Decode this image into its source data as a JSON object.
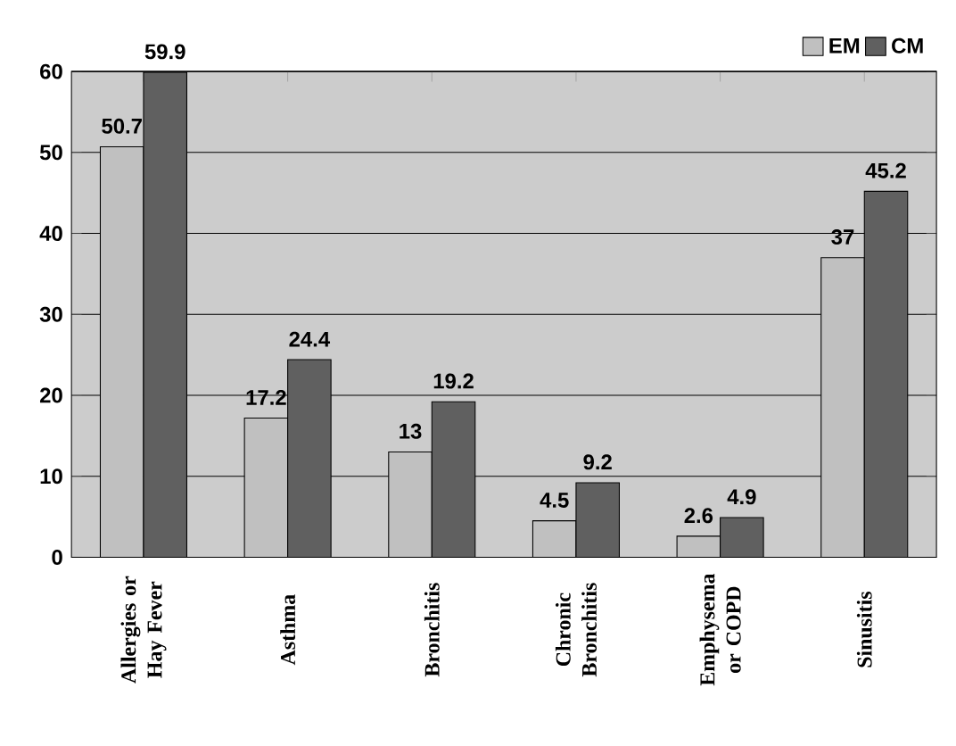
{
  "chart_data": {
    "type": "bar",
    "categories": [
      "Allergies or Hay Fever",
      "Asthma",
      "Bronchitis",
      "Chronic Bronchitis",
      "Emphysema or COPD",
      "Sinusitis"
    ],
    "series": [
      {
        "name": "EM",
        "color": "#c0c0c0",
        "values": [
          50.7,
          17.2,
          13,
          4.5,
          2.6,
          37
        ]
      },
      {
        "name": "CM",
        "color": "#606060",
        "values": [
          59.9,
          24.4,
          19.2,
          9.2,
          4.9,
          45.2
        ]
      }
    ],
    "ylim": [
      0,
      60
    ],
    "yticks": [
      0,
      10,
      20,
      30,
      40,
      50,
      60
    ],
    "grid": "y",
    "legend": "top right",
    "data_labels": true
  }
}
